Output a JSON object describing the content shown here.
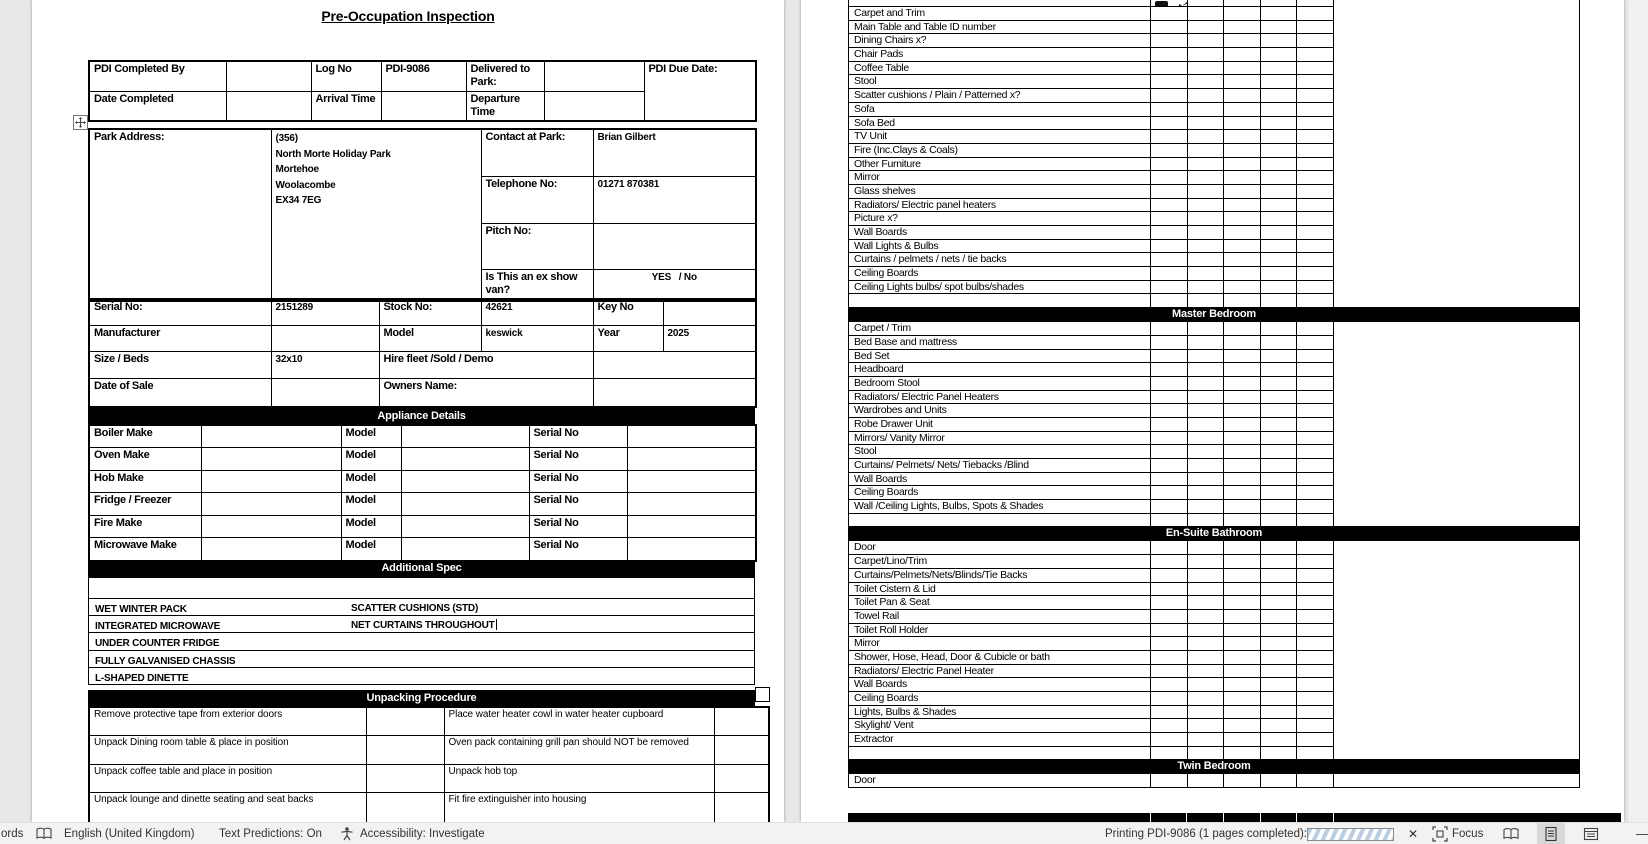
{
  "page1": {
    "title": "Pre-Occupation Inspection",
    "header_table": {
      "pdi_completed_by_label": "PDI Completed By",
      "log_no_label": "Log No",
      "log_no_value": "PDI-9086",
      "delivered_label": "Delivered to Park:",
      "pdi_due_label": "PDI Due Date:",
      "date_completed_label": "Date Completed",
      "arrival_label": "Arrival Time",
      "departure_label": "Departure Time"
    },
    "details": {
      "park_address_label": "Park Address:",
      "park_address_lines": [
        "(356)",
        "North Morte Holiday Park",
        "Mortehoe",
        "Woolacombe",
        "EX34 7EG"
      ],
      "contact_label": "Contact at Park:",
      "contact_value": "Brian Gilbert",
      "telephone_label": "Telephone No:",
      "telephone_value": "01271 870381",
      "pitch_label": "Pitch No:",
      "show_van_label": "Is This an ex show van?",
      "show_van_value": "YES   / No",
      "serial_label": "Serial No:",
      "serial_value": "2151289",
      "stock_label": "Stock No:",
      "stock_value": "42621",
      "key_label": "Key No",
      "manufacturer_label": "Manufacturer",
      "model_label": "Model",
      "model_value": "keswick",
      "year_label": "Year",
      "year_value": "2025",
      "size_label": "Size / Beds",
      "size_value": "32x10",
      "hire_label": "Hire fleet  /Sold / Demo",
      "date_of_sale_label": "Date of Sale",
      "owners_label": "Owners Name:"
    },
    "appliances": {
      "section_title": "Appliance Details",
      "model_label": "Model",
      "serial_label": "Serial No",
      "rows": [
        "Boiler Make",
        "Oven Make",
        "Hob Make",
        "Fridge / Freezer",
        "Fire Make",
        "Microwave Make"
      ]
    },
    "additional_spec": {
      "section_title": "Additional Spec",
      "rows": [
        {
          "left": "WET WINTER PACK",
          "right": "SCATTER CUSHIONS (STD)",
          "cursor": false
        },
        {
          "left": "INTEGRATED MICROWAVE",
          "right": "NET CURTAINS THROUGHOUT",
          "cursor": true
        },
        {
          "left": "UNDER COUNTER FRIDGE",
          "right": "",
          "cursor": false
        },
        {
          "left": "FULLY GALVANISED CHASSIS",
          "right": "",
          "cursor": false
        },
        {
          "left": "L-SHAPED DINETTE",
          "right": "",
          "cursor": false
        }
      ]
    },
    "unpacking": {
      "section_title": "Unpacking Procedure",
      "rows": [
        {
          "left": "Remove protective tape from exterior doors",
          "right": "Place water heater cowl in water heater cupboard"
        },
        {
          "left": "Unpack Dining room table & place in position",
          "right": "Oven pack containing grill pan should NOT be removed"
        },
        {
          "left": "Unpack coffee table and place in position",
          "right": "Unpack hob top"
        },
        {
          "left": "Unpack lounge and dinette seating and seat backs",
          "right": "Fit fire extinguisher into housing"
        }
      ]
    }
  },
  "page2": {
    "checklist": {
      "column_header_icons": [
        "brush-icon",
        "tick-icon"
      ],
      "sections": [
        {
          "header": null,
          "blank_row_after": true,
          "items": [
            "Carpet and Trim",
            "Main Table and Table ID number",
            "Dining Chairs x?",
            "Chair Pads",
            "Coffee Table",
            "Stool",
            "Scatter cushions / Plain / Patterned x?",
            "Sofa",
            "Sofa Bed",
            "TV Unit",
            "Fire (Inc.Clays & Coals)",
            "Other Furniture",
            "Mirror",
            "Glass shelves",
            "Radiators/ Electric panel heaters",
            "Picture x?",
            "Wall Boards",
            "Wall Lights & Bulbs",
            "Curtains / pelmets / nets / tie backs",
            "Ceiling Boards",
            "Ceiling Lights bulbs/ spot bulbs/shades"
          ]
        },
        {
          "header": "Master Bedroom",
          "blank_row_after": true,
          "items": [
            "Carpet / Trim",
            "Bed Base and mattress",
            "Bed Set",
            "Headboard",
            "Bedroom Stool",
            "Radiators/ Electric Panel Heaters",
            "Wardrobes and Units",
            "Robe Drawer Unit",
            "Mirrors/ Vanity Mirror",
            "Stool",
            "Curtains/ Pelmets/ Nets/ Tiebacks /Blind",
            "Wall Boards",
            "Ceiling Boards",
            "Wall /Ceiling Lights, Bulbs, Spots & Shades"
          ]
        },
        {
          "header": "En-Suite Bathroom",
          "blank_row_after": true,
          "items": [
            "Door",
            "Carpet/Lino/Trim",
            "Curtains/Pelmets/Nets/Blinds/Tie Backs",
            "Toilet Cistern & Lid",
            "Toilet Pan & Seat",
            "Towel Rail",
            "Toilet Roll Holder",
            "Mirror",
            "Shower, Hose, Head, Door & Cubicle or bath",
            "Radiators/ Electric Panel Heater",
            "Wall Boards",
            "Ceiling Boards",
            "Lights, Bulbs & Shades",
            "Skylight/ Vent",
            "Extractor"
          ]
        },
        {
          "header": "Twin Bedroom",
          "blank_row_after": false,
          "items": [
            "Door"
          ]
        }
      ]
    }
  },
  "status_bar": {
    "word_count_fragment": "ords",
    "language": "English (United Kingdom)",
    "text_predictions": "Text Predictions: On",
    "accessibility": "Accessibility: Investigate",
    "printing_status": "Printing PDI-9086 (1 pages completed):",
    "cancel_glyph": "✕",
    "focus_label": "Focus",
    "zoom_out_glyph": "—",
    "icons": [
      "proofing-book-icon",
      "accessibility-person-icon",
      "focus-icon",
      "read-mode-icon",
      "print-layout-icon",
      "web-layout-icon"
    ]
  }
}
